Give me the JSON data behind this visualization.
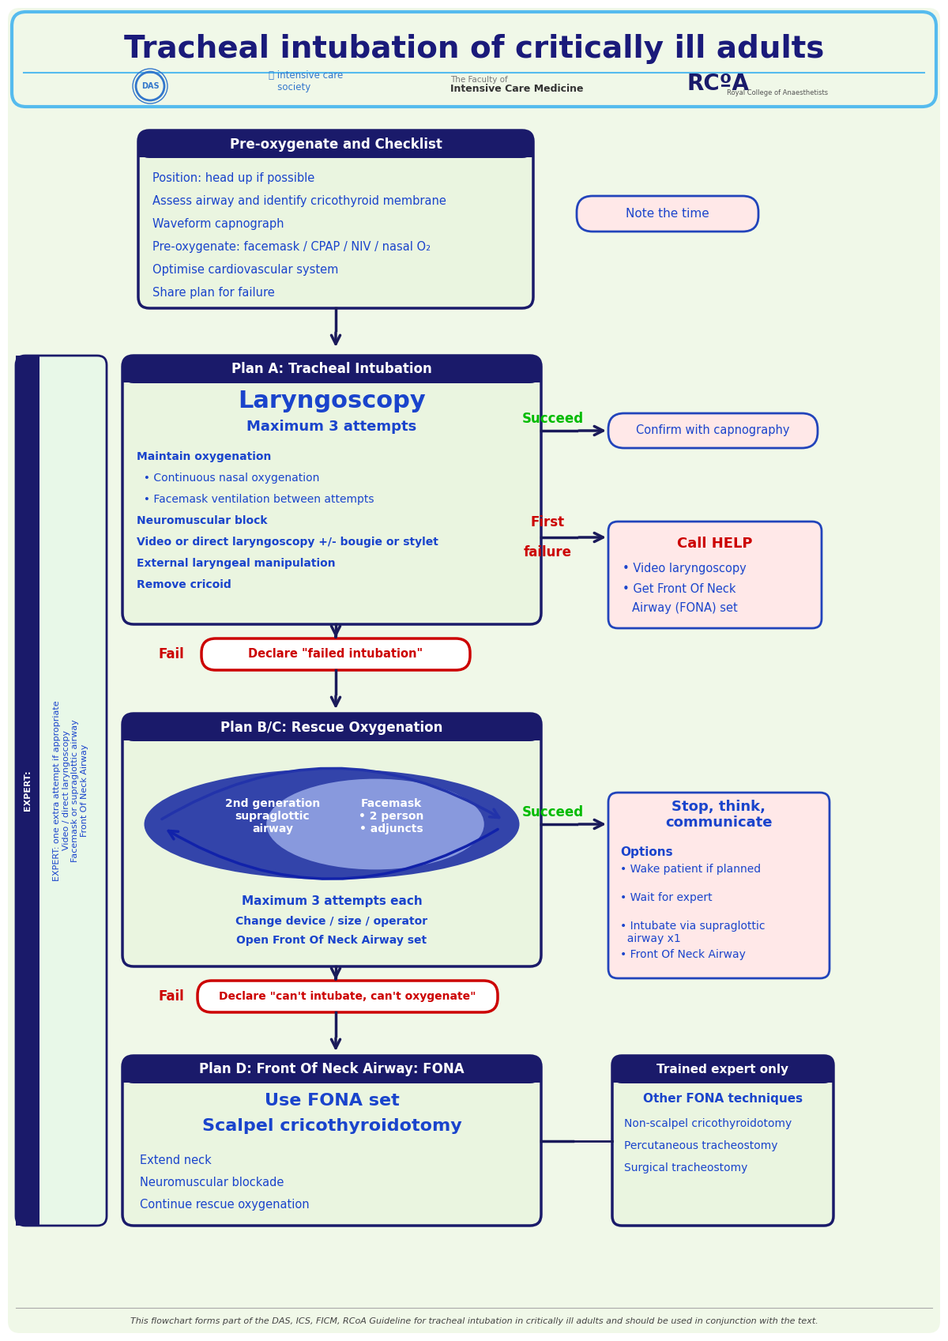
{
  "title": "Tracheal intubation of critically ill adults",
  "title_color": "#1a1a7a",
  "title_bg": "#f0f8e8",
  "title_border": "#55bbee",
  "bg_color": "#ffffff",
  "page_bg": "#f0f8e8",
  "preoxygenate_header": "Pre-oxygenate and Checklist",
  "preoxygenate_lines": [
    "Position: head up if possible",
    "Assess airway and identify cricothyroid membrane",
    "Waveform capnograph",
    "Pre-oxygenate: facemask / CPAP / NIV / nasal O₂",
    "Optimise cardiovascular system",
    "Share plan for failure"
  ],
  "plan_a_header": "Plan A: Tracheal Intubation",
  "plan_a_title": "Laryngoscopy",
  "plan_a_subtitle": "Maximum 3 attempts",
  "plan_a_detail": [
    [
      "Maintain oxygenation",
      true
    ],
    [
      "  • Continuous nasal oxygenation",
      false
    ],
    [
      "  • Facemask ventilation between attempts",
      false
    ],
    [
      "Neuromuscular block",
      true
    ],
    [
      "Video or direct laryngoscopy +/- bougie or stylet",
      true
    ],
    [
      "External laryngeal manipulation",
      true
    ],
    [
      "Remove cricoid",
      true
    ]
  ],
  "plan_bc_header": "Plan B/C: Rescue Oxygenation",
  "plan_bc_sga": "2nd generation\nsupraglottic\nairway",
  "plan_bc_fm": "Facemask\n• 2 person\n• adjuncts",
  "plan_bc_max": "Maximum 3 attempts each",
  "plan_bc_change": "Change device / size / operator",
  "plan_bc_open": "Open Front Of Neck Airway set",
  "plan_d_header": "Plan D: Front Of Neck Airway: FONA",
  "plan_d_title1": "Use FONA set",
  "plan_d_title2": "Scalpel cricothyroidotomy",
  "plan_d_lines": [
    "Extend neck",
    "Neuromuscular blockade",
    "Continue rescue oxygenation"
  ],
  "note_time": "Note the time",
  "confirm_capnography": "Confirm with capnography",
  "call_help_title": "Call HELP",
  "call_help_lines": [
    "• Video laryngoscopy",
    "• Get Front Of Neck\n  Airway (FONA) set"
  ],
  "stop_think_title": "Stop, think,\ncommunicate",
  "stop_think_options": "Options",
  "stop_think_lines": [
    "• Wake patient if planned",
    "• Wait for expert",
    "• Intubate via supraglottic\n  airway x1",
    "• Front Of Neck Airway"
  ],
  "trained_expert_header": "Trained expert only",
  "other_fona_title": "Other FONA techniques",
  "other_fona_lines": [
    "Non-scalpel cricothyroidotomy",
    "Percutaneous tracheostomy",
    "Surgical tracheostomy"
  ],
  "declare_failed": "Declare \"failed intubation\"",
  "declare_cant": "Declare \"can't intubate, can't oxygenate\"",
  "expert_bold": "EXPERT:",
  "expert_rest": " one extra attempt if appropriate",
  "expert_lines": [
    "Video / direct laryngoscopy",
    "Facemask or supraglottic airway",
    "Front Of Neck Airway"
  ],
  "succeed_color": "#00bb00",
  "fail_color": "#cc0000",
  "dark_navy": "#1a1a6a",
  "medium_blue": "#2244bb",
  "body_blue": "#1a44cc",
  "light_green": "#eaf5e0",
  "light_pink": "#ffe8e8",
  "white": "#ffffff",
  "arrow_dark": "#1a1a5a",
  "footer": "This flowchart forms part of the DAS, ICS, FICM, RCoA Guideline for tracheal intubation in critically ill adults and should be used in conjunction with the text."
}
